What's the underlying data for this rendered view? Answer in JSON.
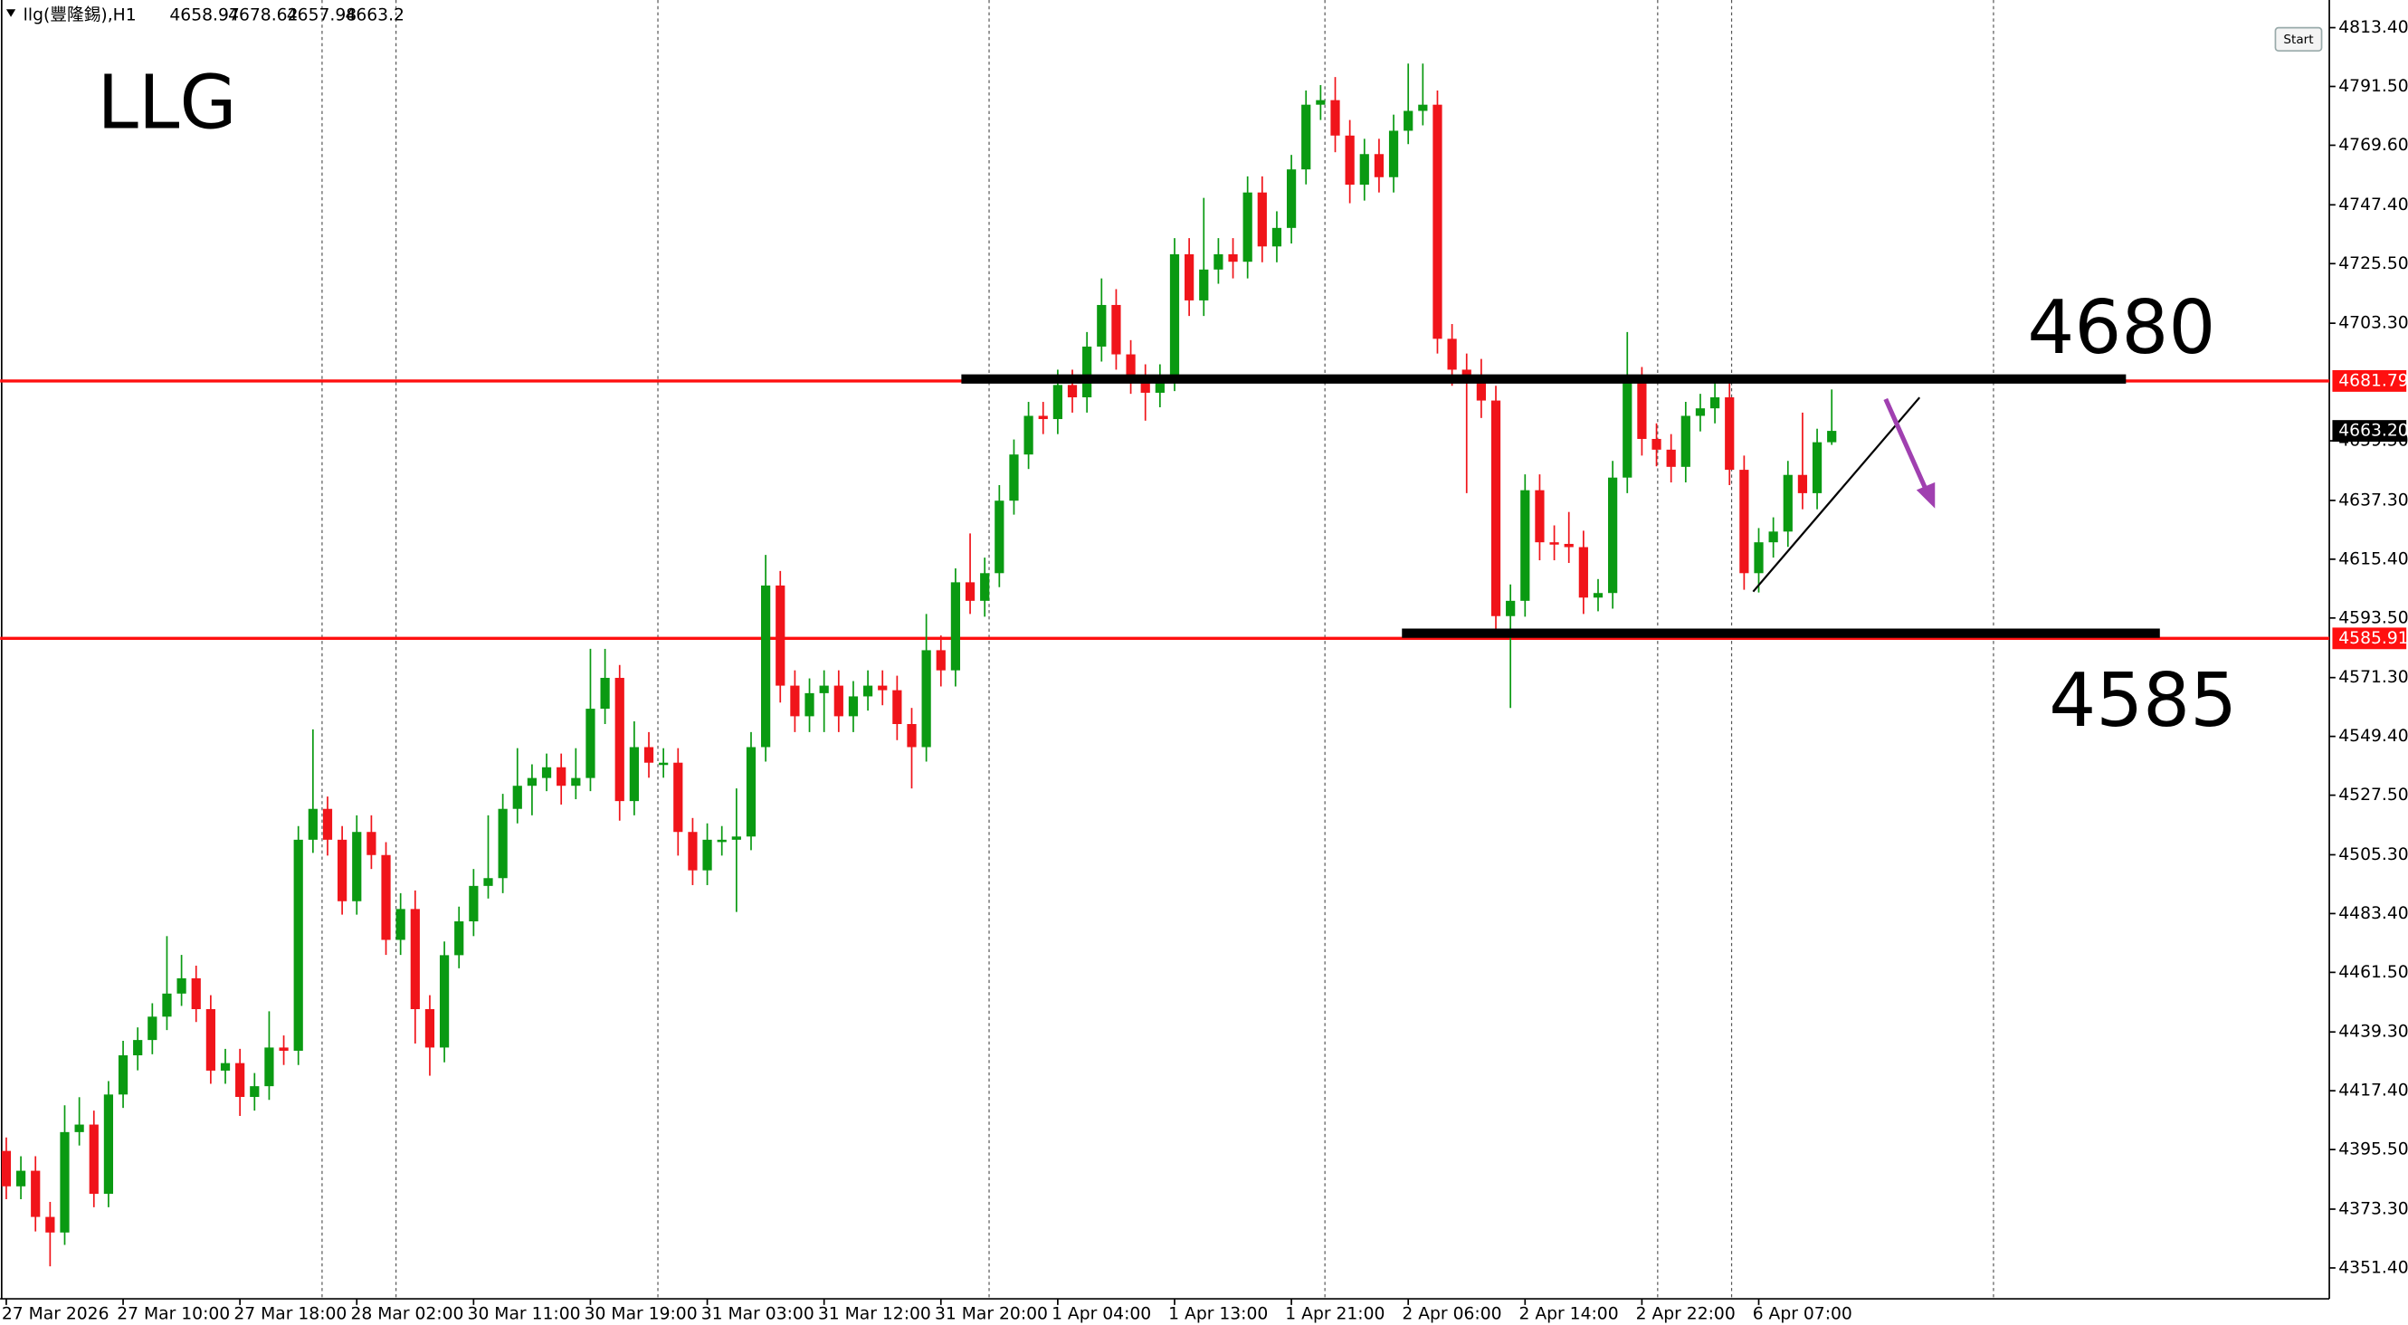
{
  "chart_data": {
    "type": "candlestick",
    "symbol": "llg(豐隆錫),H1",
    "title": "LLG",
    "annotations": [
      "4680",
      "4585"
    ],
    "button": "Start",
    "up_color": "#0a9a12",
    "down_color": "#f0141a",
    "level_color": "#ff1010",
    "categories": [
      "27 Mar 2026",
      null,
      null,
      null,
      null,
      null,
      null,
      null,
      "27 Mar 10:00",
      null,
      null,
      null,
      null,
      null,
      null,
      null,
      "27 Mar 18:00",
      null,
      null,
      null,
      null,
      null,
      null,
      null,
      "28 Mar 02:00",
      null,
      null,
      null,
      null,
      null,
      null,
      null,
      "30 Mar 11:00",
      null,
      null,
      null,
      null,
      null,
      null,
      null,
      "30 Mar 19:00",
      null,
      null,
      null,
      null,
      null,
      null,
      null,
      "31 Mar 03:00",
      null,
      null,
      null,
      null,
      null,
      null,
      null,
      "31 Mar 12:00",
      null,
      null,
      null,
      null,
      null,
      null,
      null,
      "31 Mar 20:00",
      null,
      null,
      null,
      null,
      null,
      null,
      null,
      "1 Apr 04:00",
      null,
      null,
      null,
      null,
      null,
      null,
      null,
      "1 Apr 13:00",
      null,
      null,
      null,
      null,
      null,
      null,
      null,
      "1 Apr 21:00",
      null,
      null,
      null,
      null,
      null,
      null,
      null,
      "2 Apr 06:00",
      null,
      null,
      null,
      null,
      null,
      null,
      null,
      "2 Apr 14:00",
      null,
      null,
      null,
      null,
      null,
      null,
      null,
      "2 Apr 22:00",
      null,
      null,
      null,
      null,
      null,
      null,
      null,
      "6 Apr 07:00",
      null,
      null,
      null,
      null,
      null
    ],
    "open": [
      4395,
      4381.8,
      4387.6,
      4370.4,
      4364.6,
      4402,
      4404.8,
      4379,
      4416,
      4430.6,
      4436.3,
      4445,
      4453.6,
      4459.3,
      4447.8,
      4424.9,
      4427.7,
      4415.1,
      4419.1,
      4433.5,
      4432.3,
      4510.9,
      4522.4,
      4510.9,
      4488,
      4513.8,
      4505.2,
      4473.6,
      4485.1,
      4447.8,
      4433.5,
      4467.9,
      4480.5,
      4493.7,
      4496.6,
      4522.4,
      4531,
      4533.9,
      4537.9,
      4531,
      4533.9,
      4559.7,
      4571.2,
      4525.3,
      4545.4,
      4539.6,
      4539.6,
      4513.8,
      4499.5,
      4510.9,
      4510.9,
      4512.1,
      4545.4,
      4605.6,
      4568.3,
      4556.9,
      4565.5,
      4568.3,
      4556.9,
      4564.3,
      4568.3,
      4566.6,
      4554,
      4545.4,
      4581.5,
      4574,
      4606.8,
      4599.9,
      4610.2,
      4637.2,
      4654.4,
      4668.8,
      4667.6,
      4680.3,
      4675.7,
      4694.6,
      4710.1,
      4691.7,
      4683.1,
      4677.4,
      4683.1,
      4729,
      4711.8,
      4723.3,
      4729,
      4726.2,
      4752,
      4731.9,
      4738.8,
      4760.6,
      4784.7,
      4786.4,
      4773.2,
      4754.9,
      4766.3,
      4757.7,
      4775,
      4782.4,
      4784.7,
      4697.5,
      4686,
      4683.1,
      4674.5,
      4594.2,
      4599.9,
      4641.1,
      4621.7,
      4621.1,
      4619.9,
      4601.1,
      4602.8,
      4645.8,
      4681.4,
      4660.2,
      4656.2,
      4649.8,
      4668.8,
      4671.6,
      4675.7,
      4648.7,
      4610.2,
      4621.7,
      4625.7,
      4646.8,
      4640,
      4658.97
    ],
    "high": [
      4400,
      4393,
      4393,
      4376,
      4412,
      4415,
      4410,
      4421,
      4436,
      4441,
      4450,
      4475,
      4468,
      4464,
      4453,
      4433,
      4433,
      4424,
      4447,
      4438,
      4516,
      4552,
      4527,
      4516,
      4520,
      4520,
      4510,
      4491,
      4492,
      4453,
      4473,
      4486,
      4500,
      4520,
      4528,
      4545,
      4539,
      4543,
      4543,
      4545,
      4582,
      4582,
      4576,
      4555,
      4551,
      4545,
      4545,
      4519,
      4517,
      4516,
      4530,
      4551,
      4617,
      4611,
      4574,
      4571,
      4574,
      4574,
      4570,
      4574,
      4574,
      4572,
      4560,
      4595,
      4587,
      4612,
      4625,
      4616,
      4643,
      4660,
      4674,
      4674,
      4686,
      4686,
      4700,
      4720,
      4716,
      4697,
      4688,
      4688,
      4735,
      4735,
      4750,
      4735,
      4735,
      4758,
      4758,
      4745,
      4766,
      4790,
      4792,
      4795,
      4779,
      4772,
      4772,
      4781,
      4800,
      4800,
      4790,
      4703,
      4692,
      4690,
      4680,
      4606,
      4647,
      4647,
      4628,
      4633,
      4626,
      4608,
      4652,
      4700,
      4687,
      4666,
      4662,
      4674,
      4677,
      4681,
      4681,
      4654,
      4627,
      4631,
      4652,
      4670,
      4664,
      4678.62
    ],
    "low": [
      4377,
      4377,
      4365,
      4352,
      4360,
      4397,
      4374,
      4374,
      4411,
      4425,
      4431,
      4440,
      4449,
      4443,
      4420,
      4420,
      4408,
      4410,
      4414,
      4427,
      4427,
      4506,
      4505,
      4483,
      4483,
      4500,
      4468,
      4468,
      4435,
      4423,
      4428,
      4463,
      4475,
      4489,
      4491,
      4517,
      4520,
      4529,
      4524,
      4526,
      4529,
      4554,
      4518,
      4520,
      4534,
      4534,
      4505,
      4494,
      4494,
      4505,
      4484,
      4507,
      4540,
      4562,
      4551,
      4551,
      4551,
      4551,
      4551,
      4559,
      4561,
      4548,
      4530,
      4540,
      4568,
      4568,
      4595,
      4594,
      4605,
      4632,
      4649,
      4662,
      4662,
      4670,
      4670,
      4689,
      4686,
      4677,
      4667,
      4672,
      4678,
      4706,
      4706,
      4718,
      4720,
      4720,
      4726,
      4726,
      4733,
      4755,
      4779,
      4767,
      4748,
      4749,
      4752,
      4752,
      4770,
      4777,
      4692,
      4680,
      4640,
      4668,
      4588,
      4560,
      4594,
      4615,
      4615,
      4614,
      4595,
      4596,
      4597,
      4640,
      4654,
      4650,
      4644,
      4644,
      4663,
      4666,
      4643,
      4604,
      4603,
      4616,
      4620,
      4634,
      4634,
      4657.98
    ],
    "close": [
      4381.8,
      4387.6,
      4370.4,
      4364.6,
      4402,
      4404.8,
      4379,
      4416,
      4430.6,
      4436.3,
      4445,
      4453.6,
      4459.3,
      4447.8,
      4424.9,
      4427.7,
      4415.1,
      4419.1,
      4433.5,
      4432.3,
      4510.9,
      4522.4,
      4510.9,
      4488,
      4513.8,
      4505.2,
      4473.6,
      4485.1,
      4447.8,
      4433.5,
      4467.9,
      4480.5,
      4493.7,
      4496.6,
      4522.4,
      4531,
      4533.9,
      4537.9,
      4531,
      4533.9,
      4559.7,
      4571.2,
      4525.3,
      4545.4,
      4539.6,
      4539.6,
      4513.8,
      4499.5,
      4510.9,
      4510.9,
      4512.1,
      4545.4,
      4605.6,
      4568.3,
      4556.9,
      4565.5,
      4568.3,
      4556.9,
      4564.3,
      4568.3,
      4566.6,
      4554,
      4545.4,
      4581.5,
      4574,
      4606.8,
      4599.9,
      4610.2,
      4637.2,
      4654.4,
      4668.8,
      4667.6,
      4680.3,
      4675.7,
      4694.6,
      4710.1,
      4691.7,
      4683.1,
      4677.4,
      4683.1,
      4729,
      4711.8,
      4723.3,
      4729,
      4726.2,
      4752,
      4731.9,
      4738.8,
      4760.6,
      4784.7,
      4786.4,
      4773.2,
      4754.9,
      4766.3,
      4757.7,
      4775,
      4782.4,
      4784.7,
      4697.5,
      4686,
      4683.1,
      4674.5,
      4594.2,
      4599.9,
      4641.1,
      4621.7,
      4621.1,
      4619.9,
      4601.1,
      4602.8,
      4645.8,
      4681.4,
      4660.2,
      4656.2,
      4649.8,
      4668.8,
      4671.6,
      4675.7,
      4648.7,
      4610.2,
      4621.7,
      4625.7,
      4646.8,
      4640,
      4658.97,
      4663.2
    ],
    "levels": [
      {
        "value": 4681.79,
        "label": "4681.79"
      },
      {
        "value": 4585.91,
        "label": "4585.91"
      }
    ],
    "current_price": {
      "value": 4663.2,
      "label": "4663.20"
    },
    "ylim": [
      4339.9,
      4823.7
    ],
    "yticks": [
      {
        "value": 4351.4,
        "label": "4351.40"
      },
      {
        "value": 4373.3,
        "label": "4373.30"
      },
      {
        "value": 4395.5,
        "label": "4395.50"
      },
      {
        "value": 4417.4,
        "label": "4417.40"
      },
      {
        "value": 4439.3,
        "label": "4439.30"
      },
      {
        "value": 4461.5,
        "label": "4461.50"
      },
      {
        "value": 4483.4,
        "label": "4483.40"
      },
      {
        "value": 4505.3,
        "label": "4505.30"
      },
      {
        "value": 4527.5,
        "label": "4527.50"
      },
      {
        "value": 4549.4,
        "label": "4549.40"
      },
      {
        "value": 4571.3,
        "label": "4571.30"
      },
      {
        "value": 4593.5,
        "label": "4593.50"
      },
      {
        "value": 4615.4,
        "label": "4615.40"
      },
      {
        "value": 4637.3,
        "label": "4637.30"
      },
      {
        "value": 4659.5,
        "label": "4659.50"
      },
      {
        "value": 4703.3,
        "label": "4703.30"
      },
      {
        "value": 4725.5,
        "label": "4725.50"
      },
      {
        "value": 4747.4,
        "label": "4747.40"
      },
      {
        "value": 4769.6,
        "label": "4769.60"
      },
      {
        "value": 4791.5,
        "label": "4791.50"
      },
      {
        "value": 4813.4,
        "label": "4813.40"
      }
    ]
  }
}
